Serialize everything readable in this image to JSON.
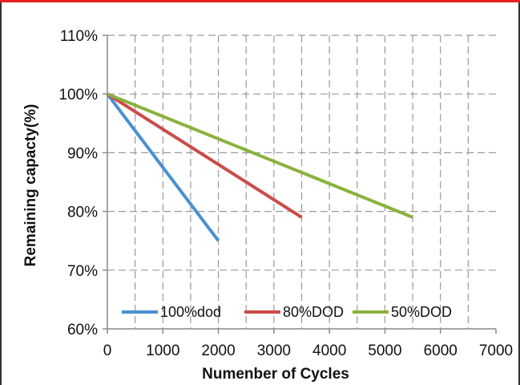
{
  "chart_data": {
    "type": "line",
    "title": "",
    "xlabel": "Numenber of Cycles",
    "ylabel": "Remaining capacty(%)",
    "xlim": [
      0,
      7000
    ],
    "ylim": [
      60,
      110
    ],
    "x_ticks": [
      0,
      1000,
      2000,
      3000,
      4000,
      5000,
      6000,
      7000
    ],
    "x_tick_labels": [
      "0",
      "1000",
      "2000",
      "3000",
      "4000",
      "5000",
      "6000",
      "7000"
    ],
    "y_ticks": [
      60,
      70,
      80,
      90,
      100,
      110
    ],
    "y_tick_labels": [
      "60%",
      "70%",
      "80%",
      "90%",
      "100%",
      "110%"
    ],
    "grid": true,
    "legend_position": "bottom-inside",
    "series": [
      {
        "name": "100%dod",
        "color": "#4a90d0",
        "points": [
          [
            0,
            100
          ],
          [
            2000,
            75
          ]
        ]
      },
      {
        "name": "80%DOD",
        "color": "#cc4b48",
        "points": [
          [
            0,
            100
          ],
          [
            3500,
            79
          ]
        ]
      },
      {
        "name": "50%DOD",
        "color": "#8ab23c",
        "points": [
          [
            0,
            100
          ],
          [
            5500,
            79
          ]
        ]
      }
    ]
  },
  "colors": {
    "top_bar": "#e02020",
    "frame": "#333333",
    "grid": "#9a9a9a"
  }
}
